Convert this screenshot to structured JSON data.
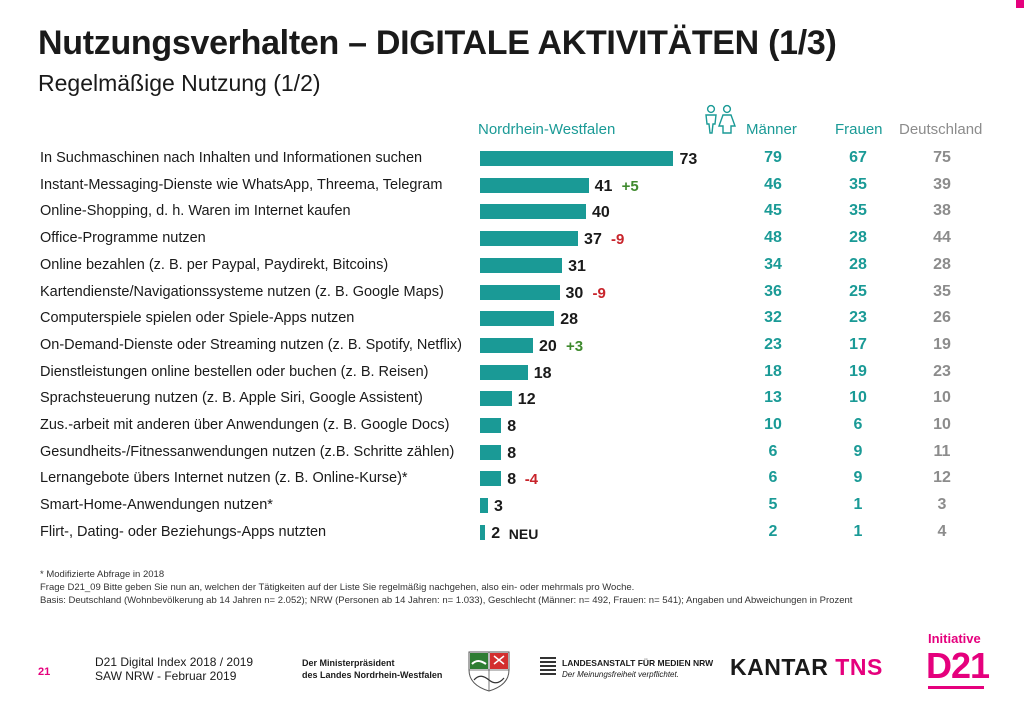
{
  "title": "Nutzungsverhalten – DIGITALE AKTIVITÄTEN (1/3)",
  "subtitle": "Regelmäßige Nutzung (1/2)",
  "column_headers": {
    "nrw": "Nordrhein-Westfalen",
    "maenner": "Männer",
    "frauen": "Frauen",
    "deutschland": "Deutschland"
  },
  "chart_data": {
    "type": "bar",
    "orientation": "horizontal",
    "categories": [
      "In Suchmaschinen nach Inhalten und Informationen suchen",
      "Instant-Messaging-Dienste wie WhatsApp, Threema, Telegram",
      "Online-Shopping, d. h. Waren im Internet kaufen",
      "Office-Programme nutzen",
      "Online bezahlen (z. B. per Paypal, Paydirekt, Bitcoins)",
      "Kartendienste/Navigationssysteme nutzen (z. B. Google Maps)",
      "Computerspiele spielen oder Spiele-Apps nutzen",
      "On-Demand-Dienste oder Streaming nutzen (z. B. Spotify, Netflix)",
      "Dienstleistungen online bestellen oder buchen (z. B. Reisen)",
      "Sprachsteuerung nutzen (z. B. Apple Siri, Google Assistent)",
      "Zus.-arbeit mit anderen über Anwendungen (z. B. Google Docs)",
      "Gesundheits-/Fitnessanwendungen nutzen (z.B. Schritte zählen)",
      "Lernangebote übers Internet nutzen (z. B. Online-Kurse)*",
      "Smart-Home-Anwendungen nutzen*",
      "Flirt-, Dating- oder Beziehungs-Apps nutzten"
    ],
    "series": [
      {
        "name": "Nordrhein-Westfalen",
        "values": [
          73,
          41,
          40,
          37,
          31,
          30,
          28,
          20,
          18,
          12,
          8,
          8,
          8,
          3,
          2
        ]
      },
      {
        "name": "Männer",
        "values": [
          79,
          46,
          45,
          48,
          34,
          36,
          32,
          23,
          18,
          13,
          10,
          6,
          6,
          5,
          2
        ]
      },
      {
        "name": "Frauen",
        "values": [
          67,
          35,
          35,
          28,
          28,
          25,
          23,
          17,
          19,
          10,
          6,
          9,
          9,
          1,
          1
        ]
      },
      {
        "name": "Deutschland",
        "values": [
          75,
          39,
          38,
          44,
          28,
          35,
          26,
          19,
          23,
          10,
          10,
          11,
          12,
          3,
          4
        ]
      }
    ],
    "changes": [
      "",
      "+5",
      "",
      "-9",
      "",
      "-9",
      "",
      "+3",
      "",
      "",
      "",
      "",
      "-4",
      "",
      "NEU"
    ],
    "colors": {
      "bar": "#1a9a96",
      "positive": "#3f8a2e",
      "negative": "#c8242b",
      "deutschland": "#8c8c8c"
    }
  },
  "footnotes": [
    "* Modifizierte Abfrage in 2018",
    "Frage D21_09 Bitte geben Sie nun an, welchen der Tätigkeiten auf der Liste Sie regelmäßig nachgehen, also ein- oder mehrmals pro Woche.",
    "Basis: Deutschland (Wohnbevölkerung ab 14 Jahren n= 2.052); NRW (Personen ab 14 Jahren: n= 1.033), Geschlecht (Männer: n= 492, Frauen: n= 541); Angaben und Abweichungen in Prozent"
  ],
  "footer": {
    "page_number": "21",
    "source_line1": "D21 Digital Index 2018 / 2019",
    "source_line2": "SAW NRW - Februar 2019",
    "ministerpraesident_line1": "Der Ministerpräsident",
    "ministerpraesident_line2": "des Landes Nordrhein-Westfalen",
    "landesanstalt_line1": "LANDESANSTALT FÜR MEDIEN NRW",
    "landesanstalt_line2": "Der Meinungsfreiheit verpflichtet.",
    "kantar": "KANTAR",
    "tns": "TNS",
    "initiative": "Initiative",
    "d21": "D21"
  }
}
